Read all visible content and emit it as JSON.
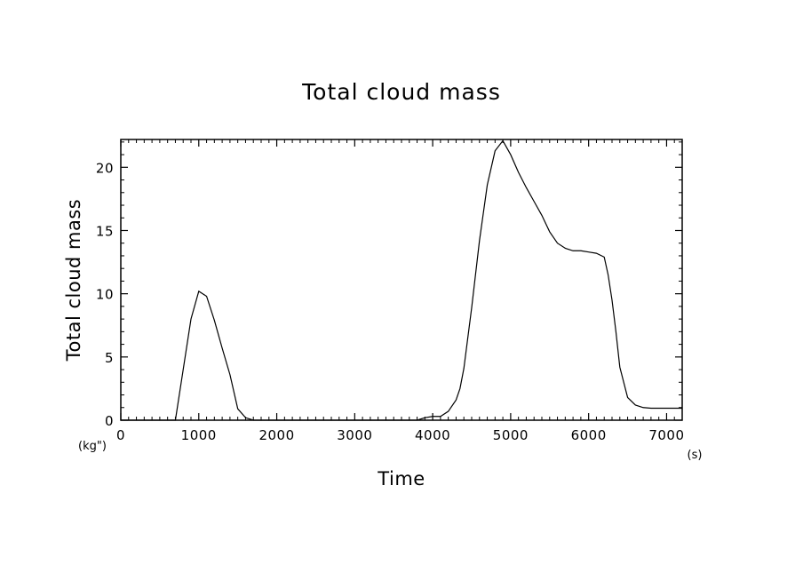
{
  "chart_data": {
    "type": "line",
    "title": "Total cloud mass",
    "xlabel": "Time",
    "ylabel": "Total cloud mass",
    "x_unit": "(s)",
    "y_unit": "(kg\")",
    "xlim": [
      0,
      7200
    ],
    "ylim": [
      0,
      22.2
    ],
    "x_major_ticks": [
      0,
      1000,
      2000,
      3000,
      4000,
      5000,
      6000,
      7000
    ],
    "y_major_ticks": [
      0,
      5,
      10,
      15,
      20
    ],
    "x_tick_labels": [
      "0",
      "1000",
      "2000",
      "3000",
      "4000",
      "5000",
      "6000",
      "7000"
    ],
    "y_tick_labels": [
      "0",
      "5",
      "10",
      "15",
      "20"
    ],
    "x_minor_step": 100,
    "y_minor_step": 1,
    "grid": false,
    "color": "#000000",
    "series": [
      {
        "x": [
          0,
          700,
          800,
          900,
          1000,
          1100,
          1200,
          1300,
          1400,
          1500,
          1600,
          1700,
          1800,
          2000,
          2500,
          3000,
          3500,
          3800,
          3900,
          4000,
          4100,
          4200,
          4300,
          4350,
          4400,
          4500,
          4600,
          4700,
          4800,
          4900,
          5000,
          5100,
          5200,
          5300,
          5400,
          5500,
          5600,
          5700,
          5800,
          5900,
          6000,
          6100,
          6200,
          6250,
          6300,
          6350,
          6400,
          6500,
          6600,
          6700,
          6800,
          7000,
          7200
        ],
        "y": [
          0,
          0,
          4,
          8,
          10.2,
          9.8,
          7.9,
          5.7,
          3.6,
          0.9,
          0.2,
          0,
          0,
          0,
          0,
          0,
          0,
          0,
          0.2,
          0.3,
          0.3,
          0.7,
          1.6,
          2.5,
          4.1,
          8.9,
          14.2,
          18.6,
          21.3,
          22.1,
          21.0,
          19.6,
          18.4,
          17.3,
          16.2,
          14.9,
          14.0,
          13.6,
          13.4,
          13.4,
          13.3,
          13.2,
          12.9,
          11.5,
          9.5,
          7.0,
          4.2,
          1.8,
          1.2,
          1.0,
          0.95,
          0.95,
          0.95
        ]
      }
    ]
  }
}
